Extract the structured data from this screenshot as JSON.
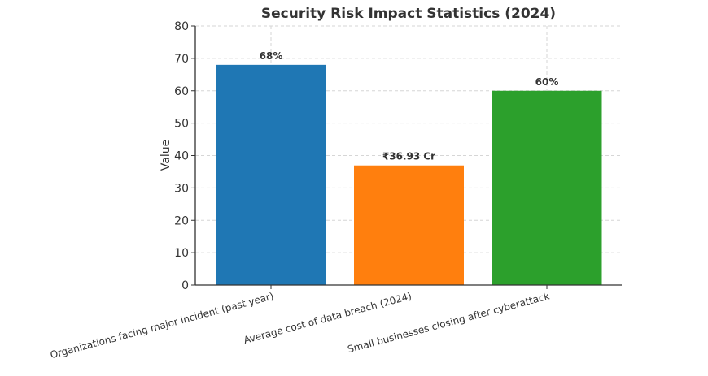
{
  "chart_data": {
    "type": "bar",
    "title": "Security Risk Impact Statistics (2024)",
    "xlabel": "",
    "ylabel": "Value",
    "ylim": [
      0,
      80
    ],
    "yticks": [
      "0",
      "10",
      "20",
      "30",
      "40",
      "50",
      "60",
      "70",
      "80"
    ],
    "grid": true,
    "categories": [
      "Organizations facing major incident (past year)",
      "Average cost of data breach (2024)",
      "Small businesses closing after cyberattack"
    ],
    "values": [
      68,
      36.93,
      60
    ],
    "data_labels": [
      "68%",
      "₹36.93 Cr",
      "60%"
    ],
    "colors": [
      "#1f77b4",
      "#ff7f0e",
      "#2ca02c"
    ]
  }
}
